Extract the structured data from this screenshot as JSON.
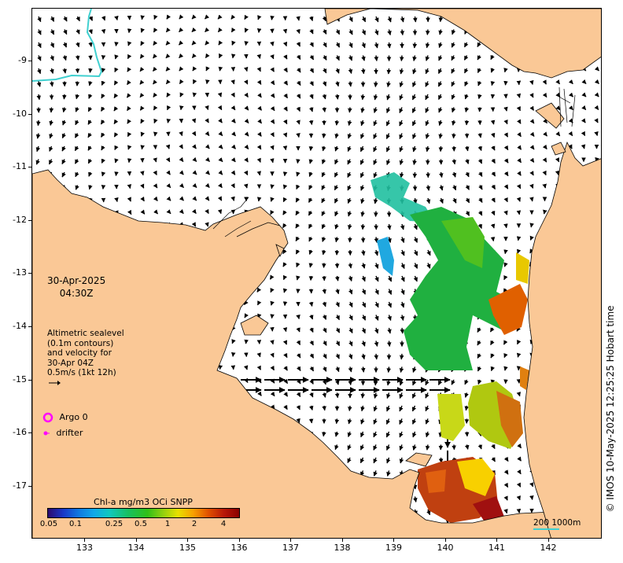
{
  "map": {
    "credit": "© IMOS 10-May-2025 12:25:25 Hobart time",
    "date": "30-Apr-2025",
    "time": "04:30Z",
    "info_lines": [
      "Altimetric sealevel",
      "(0.1m contours)",
      "and velocity for",
      "30-Apr 04Z",
      "0.5m/s (1kt 12h)"
    ],
    "legend": {
      "argo": "Argo 0",
      "drifter": "drifter",
      "argo_color": "#ff00ff",
      "drifter_color": "#ff00ff"
    },
    "colorbar": {
      "title": "Chl-a mg/m3 OCi SNPP",
      "labels": [
        "0.05",
        "0.1",
        "0.25",
        "0.5",
        "1",
        "2",
        "4"
      ]
    },
    "scale": {
      "label": "200  1000m"
    },
    "colors": {
      "land": "#fac896",
      "ocean": "#ffffff",
      "contour": "#40d0d0"
    },
    "axes": {
      "lon_ticks": [
        "133",
        "134",
        "135",
        "136",
        "137",
        "138",
        "139",
        "140",
        "141",
        "142"
      ],
      "lat_ticks": [
        "-9",
        "-10",
        "-11",
        "-12",
        "-13",
        "-14",
        "-15",
        "-16",
        "-17"
      ]
    }
  }
}
